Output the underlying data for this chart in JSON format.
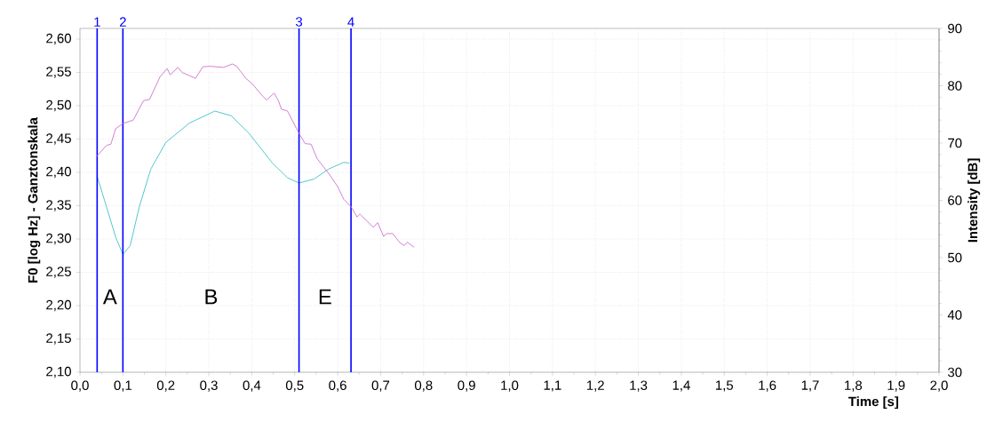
{
  "chart_data": {
    "type": "line",
    "xlabel": "Time [s]",
    "ylabel": "F0 [log Hz] - Ganztonskala",
    "y2label": "Intensity [dB]",
    "xlim": [
      0,
      2.0
    ],
    "ylim": [
      2.1,
      2.616
    ],
    "y2lim": [
      30,
      90
    ],
    "xticks": [
      {
        "value": 0.0,
        "label": "0,0"
      },
      {
        "value": 0.1,
        "label": "0,1"
      },
      {
        "value": 0.2,
        "label": "0,2"
      },
      {
        "value": 0.3,
        "label": "0,3"
      },
      {
        "value": 0.4,
        "label": "0,4"
      },
      {
        "value": 0.5,
        "label": "0,5"
      },
      {
        "value": 0.6,
        "label": "0,6"
      },
      {
        "value": 0.7,
        "label": "0,7"
      },
      {
        "value": 0.8,
        "label": "0,8"
      },
      {
        "value": 0.9,
        "label": "0,9"
      },
      {
        "value": 1.0,
        "label": "1,0"
      },
      {
        "value": 1.1,
        "label": "1,1"
      },
      {
        "value": 1.2,
        "label": "1,2"
      },
      {
        "value": 1.3,
        "label": "1,3"
      },
      {
        "value": 1.4,
        "label": "1,4"
      },
      {
        "value": 1.5,
        "label": "1,5"
      },
      {
        "value": 1.6,
        "label": "1,6"
      },
      {
        "value": 1.7,
        "label": "1,7"
      },
      {
        "value": 1.8,
        "label": "1,8"
      },
      {
        "value": 1.9,
        "label": "1,9"
      },
      {
        "value": 2.0,
        "label": "2,0"
      }
    ],
    "yticks": [
      {
        "value": 2.1,
        "label": "2,10"
      },
      {
        "value": 2.15,
        "label": "2,15"
      },
      {
        "value": 2.2,
        "label": "2,20"
      },
      {
        "value": 2.25,
        "label": "2,25"
      },
      {
        "value": 2.3,
        "label": "2,30"
      },
      {
        "value": 2.35,
        "label": "2,35"
      },
      {
        "value": 2.4,
        "label": "2,40"
      },
      {
        "value": 2.45,
        "label": "2,45"
      },
      {
        "value": 2.5,
        "label": "2,50"
      },
      {
        "value": 2.55,
        "label": "2,55"
      },
      {
        "value": 2.6,
        "label": "2,60"
      }
    ],
    "y2ticks": [
      30,
      40,
      50,
      60,
      70,
      80,
      90
    ],
    "grid": true,
    "series": [
      {
        "color": "#40c0c8",
        "x": [
          0.04,
          0.062,
          0.083,
          0.1,
          0.117,
          0.138,
          0.165,
          0.2,
          0.255,
          0.314,
          0.352,
          0.393,
          0.448,
          0.483,
          0.51,
          0.545,
          0.579,
          0.614,
          0.627
        ],
        "values": [
          2.394,
          2.348,
          2.303,
          2.277,
          2.29,
          2.348,
          2.405,
          2.445,
          2.474,
          2.492,
          2.485,
          2.459,
          2.414,
          2.392,
          2.384,
          2.39,
          2.405,
          2.415,
          2.414
        ]
      },
      {
        "color": "#d070d0",
        "axis": "y2",
        "x": [
          0.038,
          0.062,
          0.072,
          0.083,
          0.1,
          0.124,
          0.148,
          0.162,
          0.186,
          0.203,
          0.21,
          0.228,
          0.238,
          0.269,
          0.286,
          0.303,
          0.334,
          0.355,
          0.365,
          0.386,
          0.403,
          0.417,
          0.434,
          0.452,
          0.462,
          0.469,
          0.483,
          0.51,
          0.524,
          0.538,
          0.552,
          0.579,
          0.6,
          0.614,
          0.631,
          0.645,
          0.652,
          0.683,
          0.693,
          0.707,
          0.714,
          0.728,
          0.745,
          0.755,
          0.762,
          0.778
        ],
        "values": [
          67.6,
          69.6,
          69.8,
          72.5,
          73.4,
          74.0,
          77.4,
          77.6,
          81.5,
          83.0,
          81.9,
          83.2,
          82.3,
          81.3,
          83.3,
          83.4,
          83.2,
          83.8,
          83.4,
          81.3,
          80.2,
          78.9,
          77.5,
          78.7,
          77.4,
          75.9,
          75.6,
          71.7,
          69.9,
          69.8,
          67.3,
          64.7,
          62.4,
          60.2,
          58.9,
          57.1,
          57.6,
          55.3,
          56.1,
          53.7,
          54.2,
          54.2,
          52.6,
          52.1,
          52.7,
          51.8
        ]
      }
    ],
    "ref_lines": [
      {
        "axis": "x",
        "value": 0.04,
        "color": "#0000ff"
      },
      {
        "axis": "x",
        "value": 0.1,
        "color": "#0000ff"
      },
      {
        "axis": "x",
        "value": 0.51,
        "color": "#0000ff"
      },
      {
        "axis": "x",
        "value": 0.631,
        "color": "#0000ff"
      }
    ],
    "annotations": [
      "1",
      "2",
      "3",
      "4",
      "A",
      "B",
      "E"
    ]
  }
}
